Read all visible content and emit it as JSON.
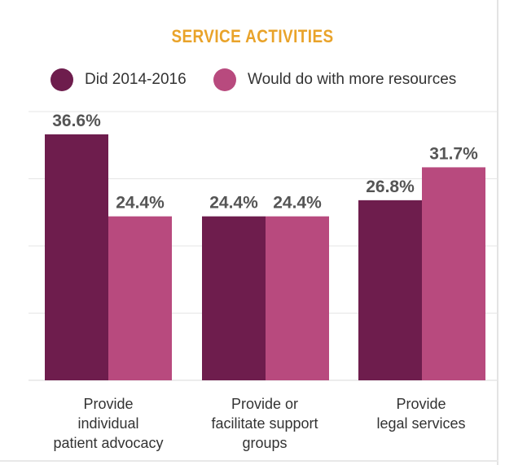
{
  "chart_data": {
    "type": "bar",
    "title": "SERVICE ACTIVITIES",
    "categories": [
      "Provide\nindividual\npatient advocacy",
      "Provide or\nfacilitate support\ngroups",
      "Provide\nlegal services"
    ],
    "series": [
      {
        "name": "Did 2014-2016",
        "values": [
          36.6,
          24.4,
          26.8
        ],
        "labels": [
          "36.6%",
          "24.4%",
          "26.8%"
        ],
        "color": "#6e1d4d"
      },
      {
        "name": "Would do with more resources",
        "values": [
          24.4,
          24.4,
          31.7
        ],
        "labels": [
          "24.4%",
          "24.4%",
          "31.7%"
        ],
        "color": "#b84a7e"
      }
    ],
    "ylim": [
      0,
      40
    ],
    "grid": true,
    "legend_position": "top"
  }
}
